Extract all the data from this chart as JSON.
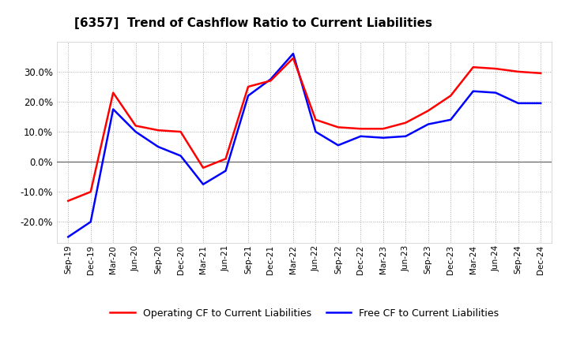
{
  "title": "[6357]  Trend of Cashflow Ratio to Current Liabilities",
  "x_labels": [
    "Sep-19",
    "Dec-19",
    "Mar-20",
    "Jun-20",
    "Sep-20",
    "Dec-20",
    "Mar-21",
    "Jun-21",
    "Sep-21",
    "Dec-21",
    "Mar-22",
    "Jun-22",
    "Sep-22",
    "Dec-22",
    "Mar-23",
    "Jun-23",
    "Sep-23",
    "Dec-23",
    "Mar-24",
    "Jun-24",
    "Sep-24",
    "Dec-24"
  ],
  "operating_cf": [
    -13.0,
    -10.0,
    23.0,
    12.0,
    10.5,
    10.0,
    -2.0,
    1.0,
    25.0,
    27.0,
    34.5,
    14.0,
    11.5,
    11.0,
    11.0,
    13.0,
    17.0,
    22.0,
    31.5,
    31.0,
    30.0,
    29.5
  ],
  "free_cf": [
    -25.0,
    -20.0,
    17.5,
    10.0,
    5.0,
    2.0,
    -7.5,
    -3.0,
    22.0,
    27.5,
    36.0,
    10.0,
    5.5,
    8.5,
    8.0,
    8.5,
    12.5,
    14.0,
    23.5,
    23.0,
    19.5,
    19.5
  ],
  "operating_cf_color": "#ff0000",
  "free_cf_color": "#0000ff",
  "background_color": "#ffffff",
  "plot_bg_color": "#ffffff",
  "grid_color": "#aaaaaa",
  "ylim": [
    -27,
    40
  ],
  "yticks": [
    -20,
    -10,
    0,
    10,
    20,
    30
  ],
  "legend_labels": [
    "Operating CF to Current Liabilities",
    "Free CF to Current Liabilities"
  ]
}
